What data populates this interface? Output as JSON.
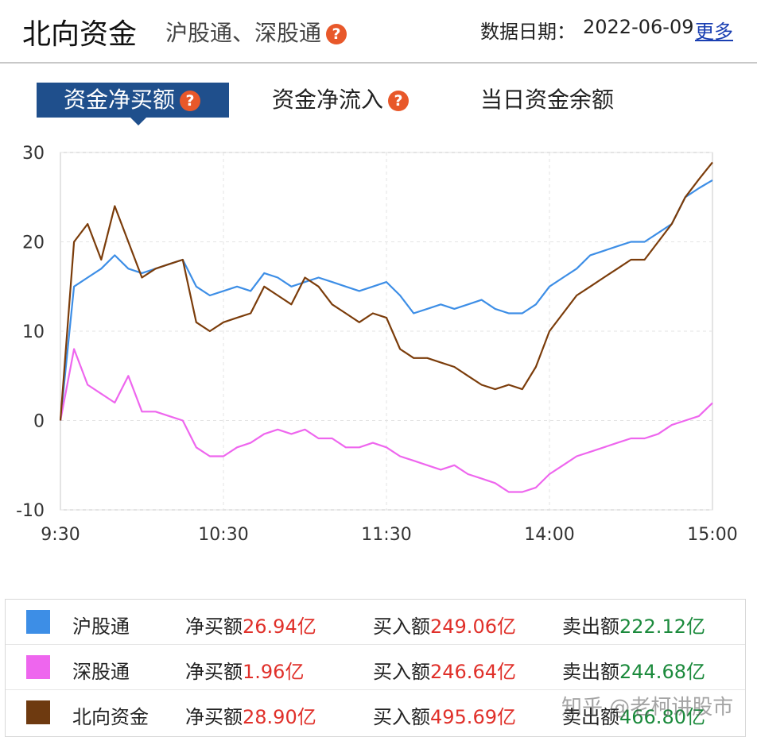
{
  "header": {
    "title": "北向资金",
    "subtitle": "沪股通、深股通",
    "help_icon": "?",
    "date_label": "数据日期：",
    "date_value": "2022-06-09",
    "more_link": "更多"
  },
  "tabs": [
    {
      "label": "资金净买额",
      "active": true,
      "has_help": true
    },
    {
      "label": "资金净流入",
      "active": false,
      "has_help": true
    },
    {
      "label": "当日资金余额",
      "active": false,
      "has_help": false
    }
  ],
  "chart_data": {
    "type": "line",
    "ylim": [
      -10,
      30
    ],
    "yticks": [
      "30",
      "20",
      "10",
      "0",
      "-10"
    ],
    "xticks": [
      "9:30",
      "10:30",
      "11:30",
      "14:00",
      "15:00"
    ],
    "x": [
      "9:30",
      "9:35",
      "9:40",
      "9:45",
      "9:50",
      "9:55",
      "10:00",
      "10:05",
      "10:10",
      "10:15",
      "10:20",
      "10:25",
      "10:30",
      "10:35",
      "10:40",
      "10:45",
      "10:50",
      "10:55",
      "11:00",
      "11:05",
      "11:10",
      "11:15",
      "11:20",
      "11:25",
      "11:30",
      "13:05",
      "13:10",
      "13:15",
      "13:20",
      "13:25",
      "13:30",
      "13:35",
      "13:40",
      "13:45",
      "13:50",
      "13:55",
      "14:00",
      "14:05",
      "14:10",
      "14:15",
      "14:20",
      "14:25",
      "14:30",
      "14:35",
      "14:40",
      "14:45",
      "14:50",
      "14:55",
      "15:00"
    ],
    "series": [
      {
        "name": "沪股通",
        "color": "#3d8ee6",
        "values": [
          0,
          15,
          16,
          17,
          18.5,
          17,
          16.5,
          17,
          17.5,
          18,
          15,
          14,
          14.5,
          15,
          14.5,
          16.5,
          16,
          15,
          15.5,
          16,
          15.5,
          15,
          14.5,
          15,
          15.5,
          14,
          12,
          12.5,
          13,
          12.5,
          13,
          13.5,
          12.5,
          12,
          12,
          13,
          15,
          16,
          17,
          18.5,
          19,
          19.5,
          20,
          20,
          21,
          22,
          25,
          26,
          26.9
        ]
      },
      {
        "name": "深股通",
        "color": "#ee66ee",
        "values": [
          0,
          8,
          4,
          3,
          2,
          5,
          1,
          1,
          0.5,
          0,
          -3,
          -4,
          -4,
          -3,
          -2.5,
          -1.5,
          -1,
          -1.5,
          -1,
          -2,
          -2,
          -3,
          -3,
          -2.5,
          -3,
          -4,
          -4.5,
          -5,
          -5.5,
          -5,
          -6,
          -6.5,
          -7,
          -8,
          -8,
          -7.5,
          -6,
          -5,
          -4,
          -3.5,
          -3,
          -2.5,
          -2,
          -2,
          -1.5,
          -0.5,
          0,
          0.5,
          1.96
        ]
      },
      {
        "name": "北向资金",
        "color": "#7b3c0a",
        "values": [
          0,
          20,
          22,
          18,
          24,
          20,
          16,
          17,
          17.5,
          18,
          11,
          10,
          11,
          11.5,
          12,
          15,
          14,
          13,
          16,
          15,
          13,
          12,
          11,
          12,
          11.5,
          8,
          7,
          7,
          6.5,
          6,
          5,
          4,
          3.5,
          4,
          3.5,
          6,
          10,
          12,
          14,
          15,
          16,
          17,
          18,
          18,
          20,
          22,
          25,
          27,
          28.9
        ]
      }
    ]
  },
  "legend": [
    {
      "name": "沪股通",
      "color": "#3d8ee6",
      "net_label": "净买额",
      "net_value": "26.94亿",
      "buy_label": "买入额",
      "buy_value": "249.06亿",
      "sell_label": "卖出额",
      "sell_value": "222.12亿"
    },
    {
      "name": "深股通",
      "color": "#ee66ee",
      "net_label": "净买额",
      "net_value": "1.96亿",
      "buy_label": "买入额",
      "buy_value": "246.64亿",
      "sell_label": "卖出额",
      "sell_value": "244.68亿"
    },
    {
      "name": "北向资金",
      "color": "#6e3a10",
      "net_label": "净买额",
      "net_value": "28.90亿",
      "buy_label": "买入额",
      "buy_value": "495.69亿",
      "sell_label": "卖出额",
      "sell_value": "466.80亿"
    }
  ],
  "watermark": "知乎 @老柯讲股市"
}
